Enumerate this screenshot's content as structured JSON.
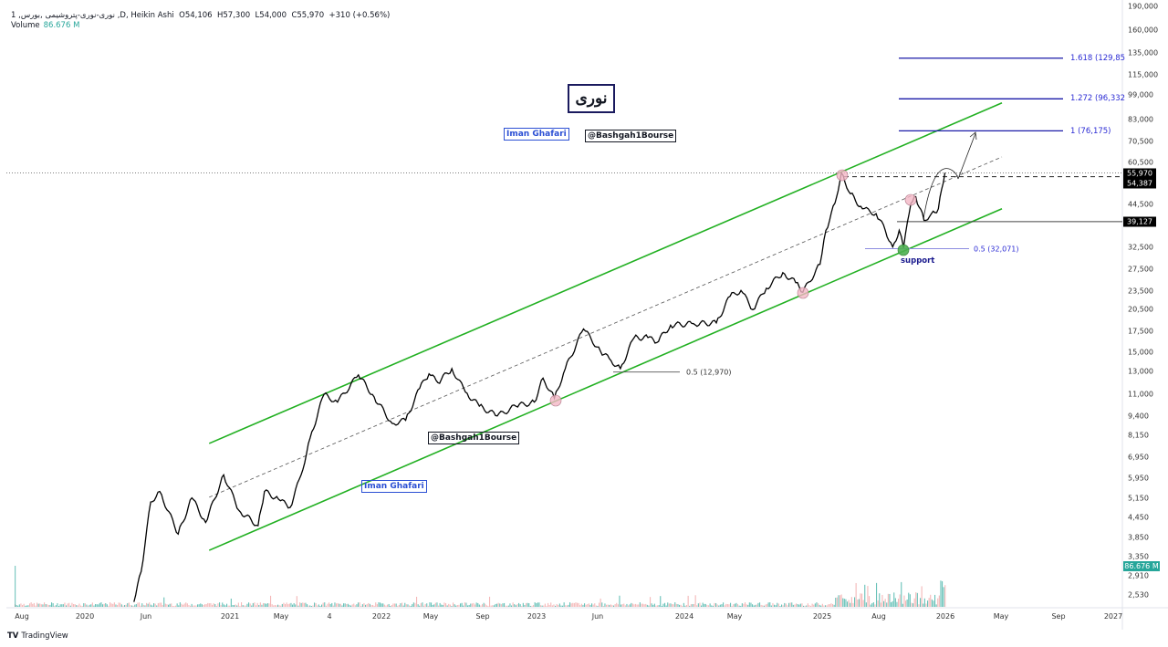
{
  "header": {
    "symbol_line": "1 ,نوری-نوری-پتروشیمی ,بورس ,D",
    "chart_type": "Heikin Ashi",
    "open": "O54,106",
    "high": "H57,300",
    "low": "L54,000",
    "close": "C55,970",
    "change": "+310 (+0.56%)",
    "volume_label": "Volume",
    "volume_value": "86.676 M"
  },
  "annotations": {
    "logo_text": "نوری",
    "author_tag_top": "Iman Ghafari",
    "channel_tag_top": "@Bashgah1Bourse",
    "channel_tag_mid": "@Bashgah1Bourse",
    "author_tag_bottom": "Iman Ghafari",
    "support_label": "support",
    "fib_1618": "1.618 (129,85",
    "fib_1272": "1.272 (96,332",
    "fib_1": "1 (76,175)",
    "fib_05_recent": "0.5 (32,071)",
    "fib_05_old": "0.5 (12,970)"
  },
  "price_labels": {
    "last": "55,970",
    "dashed_level": "54,387",
    "horizontal_level": "39,127",
    "volume": "86.676 M"
  },
  "colors": {
    "channel": "#22b022",
    "fib": "#1a1aa8",
    "price_line": "#000000",
    "volume_up": "#26a69a",
    "volume_down": "#ef9a9a",
    "touch_circle": "#f4b6c6",
    "support_circle": "#4caf50"
  },
  "footer": {
    "brand": "TradingView"
  },
  "chart_data": {
    "type": "line",
    "title": "",
    "xlabel": "",
    "ylabel": "",
    "y_scale": "log",
    "ylim": [
      2315,
      199000
    ],
    "grid": false,
    "y_ticks": [
      "190,000",
      "160,000",
      "135,000",
      "115,000",
      "99,000",
      "83,000",
      "70,500",
      "60,500",
      "44,500",
      "32,500",
      "27,500",
      "23,500",
      "20,500",
      "17,500",
      "15,000",
      "13,000",
      "11,000",
      "9,400",
      "8,150",
      "6,950",
      "5,950",
      "5,150",
      "4,450",
      "3,850",
      "3,350",
      "2,910",
      "2,530"
    ],
    "x_ticks": [
      {
        "label": "Aug",
        "date": "2019-08-01"
      },
      {
        "label": "2020",
        "date": "2020-01-01"
      },
      {
        "label": "Jun",
        "date": "2020-06-01"
      },
      {
        "label": "2021",
        "date": "2021-01-01"
      },
      {
        "label": "May",
        "date": "2021-05-01"
      },
      {
        "label": "4",
        "date": "2021-09-01"
      },
      {
        "label": "2022",
        "date": "2022-01-01"
      },
      {
        "label": "May",
        "date": "2022-05-01"
      },
      {
        "label": "Sep",
        "date": "2022-09-01"
      },
      {
        "label": "2023",
        "date": "2023-01-01"
      },
      {
        "label": "Jun",
        "date": "2023-06-01"
      },
      {
        "label": "2024",
        "date": "2024-01-01"
      },
      {
        "label": "May",
        "date": "2024-05-01"
      },
      {
        "label": "2025",
        "date": "2025-01-01"
      },
      {
        "label": "Aug",
        "date": "2025-08-01"
      },
      {
        "label": "2026",
        "date": "2026-01-01"
      },
      {
        "label": "May",
        "date": "2026-05-01"
      },
      {
        "label": "Sep",
        "date": "2026-09-01"
      },
      {
        "label": "2027",
        "date": "2027-01-01"
      }
    ],
    "series": [
      {
        "values": [
          [
            "2020-05-02",
            2400
          ],
          [
            "2020-05-20",
            3000
          ],
          [
            "2020-06-13",
            5000
          ],
          [
            "2020-07-06",
            5400
          ],
          [
            "2020-08-22",
            3950
          ],
          [
            "2020-09-26",
            5150
          ],
          [
            "2020-10-31",
            4300
          ],
          [
            "2020-12-16",
            6100
          ],
          [
            "2021-01-22",
            4700
          ],
          [
            "2021-03-08",
            4200
          ],
          [
            "2021-03-23",
            5400
          ],
          [
            "2021-04-25",
            5100
          ],
          [
            "2021-05-24",
            4800
          ],
          [
            "2021-06-21",
            6100
          ],
          [
            "2021-07-14",
            8000
          ],
          [
            "2021-08-18",
            11000
          ],
          [
            "2021-09-20",
            10400
          ],
          [
            "2021-11-08",
            12700
          ],
          [
            "2021-12-15",
            10800
          ],
          [
            "2022-01-27",
            8900
          ],
          [
            "2022-03-01",
            9100
          ],
          [
            "2022-04-04",
            11500
          ],
          [
            "2022-04-27",
            12800
          ],
          [
            "2022-05-18",
            12000
          ],
          [
            "2022-06-20",
            13300
          ],
          [
            "2022-07-22",
            11200
          ],
          [
            "2022-08-24",
            10100
          ],
          [
            "2022-10-04",
            9400
          ],
          [
            "2022-11-15",
            10100
          ],
          [
            "2022-12-27",
            10400
          ],
          [
            "2023-01-17",
            12400
          ],
          [
            "2023-02-14",
            10700
          ],
          [
            "2023-03-13",
            13300
          ],
          [
            "2023-04-27",
            17800
          ],
          [
            "2023-06-08",
            15100
          ],
          [
            "2023-07-04",
            14100
          ],
          [
            "2023-07-27",
            13300
          ],
          [
            "2023-08-30",
            16700
          ],
          [
            "2023-10-03",
            16700
          ],
          [
            "2023-10-25",
            16100
          ],
          [
            "2023-11-28",
            18300
          ],
          [
            "2024-01-23",
            18500
          ],
          [
            "2024-03-18",
            18600
          ],
          [
            "2024-04-20",
            22600
          ],
          [
            "2024-05-19",
            23600
          ],
          [
            "2024-06-21",
            20500
          ],
          [
            "2024-07-29",
            24000
          ],
          [
            "2024-09-13",
            26900
          ],
          [
            "2024-10-19",
            25000
          ],
          [
            "2024-11-08",
            23300
          ],
          [
            "2024-12-26",
            28600
          ],
          [
            "2025-01-15",
            36700
          ],
          [
            "2025-02-18",
            44800
          ],
          [
            "2025-03-14",
            56000
          ],
          [
            "2025-04-17",
            48000
          ],
          [
            "2025-06-01",
            43000
          ],
          [
            "2025-07-22",
            41500
          ],
          [
            "2025-08-16",
            36700
          ],
          [
            "2025-09-02",
            32500
          ],
          [
            "2025-09-17",
            36700
          ],
          [
            "2025-09-27",
            32300
          ],
          [
            "2025-10-14",
            44800
          ],
          [
            "2025-10-25",
            47000
          ],
          [
            "2025-11-13",
            39500
          ],
          [
            "2025-11-30",
            41500
          ],
          [
            "2025-12-16",
            43000
          ],
          [
            "2025-12-31",
            55970
          ]
        ]
      }
    ],
    "drawings": {
      "channel_upper": [
        [
          "2020-11-09",
          7680
        ],
        [
          "2026-05-03",
          93500
        ]
      ],
      "channel_lower": [
        [
          "2020-11-09",
          3505
        ],
        [
          "2026-05-03",
          43000
        ]
      ],
      "channel_mid": [
        [
          "2020-11-09",
          5175
        ],
        [
          "2026-05-03",
          62900
        ]
      ],
      "fib_levels": [
        129850,
        96332,
        76175
      ],
      "fib_05_recent": 32071,
      "fib_05_old": 12970,
      "horizontal_level": 39127,
      "dashed_level": 54387,
      "last_price": 55970
    }
  }
}
